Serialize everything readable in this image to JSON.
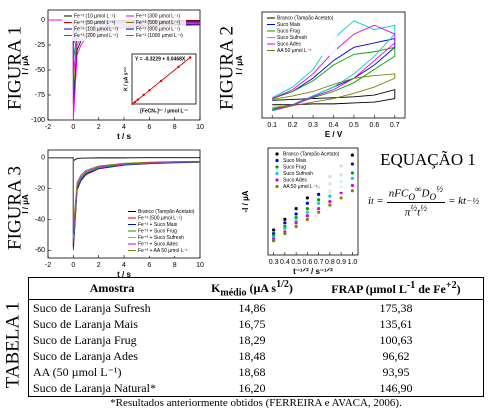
{
  "figure_labels": [
    "FIGURA 1",
    "FIGURA 2",
    "FIGURA 3",
    "TABELA 1"
  ],
  "chart_data": [
    {
      "type": "line",
      "xlabel": "t / s",
      "ylabel": "I / µA",
      "x": [
        -2,
        -1,
        0,
        0,
        0.3,
        0.6,
        1,
        2,
        4,
        6,
        8,
        10
      ],
      "xlim": [
        -2,
        10
      ],
      "xticks": [
        -2,
        0,
        2,
        4,
        6,
        8,
        10
      ],
      "ylim": [
        -100,
        10
      ],
      "yticks": [
        0,
        -25,
        -50,
        -75,
        -100
      ],
      "legend": "upper center",
      "legend_columns": 2,
      "series": [
        {
          "name": "Fe⁺³ (10 µmol L⁻¹)",
          "color": "#000000",
          "values": [
            0,
            0,
            0,
            -8,
            -2.8,
            -2,
            -1.4,
            -1,
            -0.6,
            -0.5,
            -0.4,
            -0.4
          ]
        },
        {
          "name": "Fe⁺³ (50 µmol L⁻¹)",
          "color": "#e00000",
          "values": [
            0,
            0,
            0,
            -15,
            -5.3,
            -3.8,
            -2.7,
            -1.8,
            -1.2,
            -1,
            -0.8,
            -0.8
          ]
        },
        {
          "name": "Fe⁺³ (100 µmol L⁻¹)",
          "color": "#0000e0",
          "values": [
            0,
            0,
            0,
            -25,
            -8.8,
            -6.3,
            -4.5,
            -3,
            -2,
            -1.6,
            -1.4,
            -1.3
          ]
        },
        {
          "name": "Fe⁺³ (200 µmol L⁻¹)",
          "color": "#008080",
          "values": [
            0,
            0,
            0,
            -40,
            -14,
            -10,
            -7.2,
            -4.8,
            -3.2,
            -2.6,
            -2.2,
            -2
          ]
        },
        {
          "name": "Fe⁺³ (300 µmol L⁻¹)",
          "color": "#e000e0",
          "values": [
            0,
            0,
            0,
            -55,
            -19,
            -14,
            -9.9,
            -6.6,
            -4.4,
            -3.6,
            -3,
            -2.8
          ]
        },
        {
          "name": "Fe⁺³ (500 µmol L⁻¹)",
          "color": "#808000",
          "values": [
            0,
            0,
            0,
            -70,
            -25,
            -18,
            -13,
            -8.4,
            -5.6,
            -4.6,
            -3.9,
            -3.5
          ]
        },
        {
          "name": "Fe⁺³ (800 µmol L⁻¹)",
          "color": "#000080",
          "values": [
            0,
            0,
            0,
            -85,
            -30,
            -21,
            -15,
            -10,
            -6.8,
            -5.5,
            -4.7,
            -4.3
          ]
        },
        {
          "name": "Fe⁺³ (1000 µmol L⁻¹)",
          "color": "#ff00ff",
          "values": [
            0,
            0,
            0,
            -100,
            -35,
            -25,
            -18,
            -12,
            -8,
            -6.5,
            -5.5,
            -5
          ]
        }
      ]
    },
    {
      "type": "line",
      "markers": true,
      "xlabel": "[FeCN₆]³⁻ / µmol L⁻¹",
      "ylabel": "K / µA s¹ᐟ²",
      "annotation": "Y = -0.3229 + 0.0468X",
      "x": [
        10,
        50,
        100,
        200,
        300,
        500,
        800,
        1000
      ],
      "xlim": [
        0,
        1100
      ],
      "ylim": [
        0,
        50
      ],
      "series": [
        {
          "color": "#e00000",
          "values": [
            0.15,
            2.02,
            4.36,
            9.04,
            13.7,
            23.1,
            37.1,
            46.5
          ]
        }
      ]
    },
    {
      "type": "line",
      "xlabel": "E / V",
      "ylabel": "I / µA",
      "x": [
        0.1,
        0.2,
        0.3,
        0.4,
        0.5,
        0.6,
        0.7,
        0.7,
        0.6,
        0.5,
        0.4,
        0.3,
        0.2,
        0.1
      ],
      "xlim": [
        0.05,
        0.75
      ],
      "xticks": [
        0.1,
        0.2,
        0.3,
        0.4,
        0.5,
        0.6,
        0.7
      ],
      "ylim": [
        -2,
        10
      ],
      "legend": "upper left",
      "legend_columns": 1,
      "series": [
        {
          "name": "Branco (Tampão Acetato)",
          "color": "#000000",
          "values": [
            0,
            0.1,
            0.2,
            0.3,
            0.4,
            0.6,
            1.2,
            0.2,
            -0.2,
            -0.3,
            -0.4,
            -0.4,
            -0.5,
            -0.5
          ]
        },
        {
          "name": "Suco Mais",
          "color": "#0000e0",
          "values": [
            0.2,
            1,
            2.5,
            4.5,
            6,
            6.5,
            7,
            6,
            4,
            2.5,
            1.5,
            0.5,
            -0.5,
            -1
          ]
        },
        {
          "name": "Suco Frug",
          "color": "#00a000",
          "values": [
            0.2,
            1,
            2.2,
            4,
            5.2,
            5.5,
            6,
            5,
            3.5,
            2,
            1,
            0.3,
            -0.5,
            -1
          ]
        },
        {
          "name": "Suco Sufresh",
          "color": "#00d0e0",
          "values": [
            0.3,
            1.5,
            3.5,
            7,
            9,
            8,
            8.5,
            7.5,
            5,
            3,
            1.5,
            0.5,
            -0.6,
            -1.2
          ]
        },
        {
          "name": "Suco Ades",
          "color": "#e000e0",
          "values": [
            0.2,
            1.2,
            3,
            5.5,
            7.5,
            8.5,
            7.5,
            6.5,
            4.5,
            2.5,
            1.2,
            0.4,
            -0.6,
            -1.1
          ]
        },
        {
          "name": "AA 50 µmol L⁻¹",
          "color": "#808000",
          "values": [
            0.1,
            0.5,
            1,
            1.8,
            2.5,
            2.8,
            3,
            2.5,
            1.5,
            0.8,
            0.2,
            -0.2,
            -0.6,
            -0.8
          ]
        }
      ]
    },
    {
      "type": "line",
      "xlabel": "t / s",
      "ylabel": "I / µA",
      "x": [
        -2,
        -1,
        0,
        0,
        0.3,
        0.6,
        1,
        2,
        4,
        6,
        8,
        10
      ],
      "xlim": [
        -2,
        10
      ],
      "xticks": [
        -2,
        0,
        2,
        4,
        6,
        8,
        10
      ],
      "ylim": [
        -65,
        5
      ],
      "yticks": [
        0,
        -20,
        -40,
        -60
      ],
      "legend": "lower right",
      "legend_columns": 1,
      "series": [
        {
          "name": "Branco (Tampão Acetato)",
          "color": "#000000",
          "values": [
            0,
            0,
            0,
            -2,
            -0.5,
            -0.3,
            -0.2,
            -0.1,
            -0.1,
            0,
            0,
            0
          ]
        },
        {
          "name": "Fe⁺³ (500 µmol L⁻¹)",
          "color": "#e00000",
          "values": [
            0,
            0,
            0,
            -60,
            -21,
            -15,
            -11,
            -7.2,
            -4.8,
            -3.9,
            -3.3,
            -3
          ]
        },
        {
          "name": "Fe⁺³ + Suco Mais",
          "color": "#0000e0",
          "values": [
            0,
            0,
            0,
            -58,
            -20,
            -14.5,
            -10.4,
            -7,
            -4.6,
            -3.8,
            -3.2,
            -2.9
          ]
        },
        {
          "name": "Fe⁺³ + Suco Frug",
          "color": "#00a000",
          "values": [
            0,
            0,
            0,
            -55,
            -19,
            -13.8,
            -9.9,
            -6.6,
            -4.4,
            -3.6,
            -3,
            -2.8
          ]
        },
        {
          "name": "Fe⁺³ + Suco Sufresh",
          "color": "#00d0e0",
          "values": [
            0,
            0,
            0,
            -52,
            -18,
            -13,
            -9.4,
            -6.2,
            -4.2,
            -3.4,
            -2.9,
            -2.6
          ]
        },
        {
          "name": "Fe⁺³ + Suco Ades",
          "color": "#e000e0",
          "values": [
            0,
            0,
            0,
            -50,
            -17.5,
            -12.5,
            -9,
            -6,
            -4,
            -3.3,
            -2.8,
            -2.5
          ]
        },
        {
          "name": "Fe⁺³ + AA 50 µmol L⁻¹",
          "color": "#808000",
          "values": [
            0,
            0,
            0,
            -45,
            -15.8,
            -11.3,
            -8.1,
            -5.4,
            -3.6,
            -2.9,
            -2.5,
            -2.3
          ]
        }
      ]
    },
    {
      "type": "scatter",
      "xlabel": "t⁻¹ᐟ² / s⁻¹ᐟ²",
      "ylabel": "-I / µA",
      "x": [
        0.3,
        0.4,
        0.5,
        0.6,
        0.7,
        0.8,
        0.9,
        1.0
      ],
      "xlim": [
        0.25,
        1.05
      ],
      "xticks": [
        0.3,
        0.4,
        0.5,
        0.6,
        0.7,
        0.8,
        0.9,
        {
          "value": 1.0,
          "label": "1.0"
        }
      ],
      "ylim": [
        0,
        3
      ],
      "legend": "upper left",
      "legend_columns": 1,
      "series": [
        {
          "name": "Branco (Tampão Acetato)",
          "color": "#000000",
          "values": [
            0.7,
            1.0,
            1.3,
            1.6,
            1.9,
            2.2,
            2.5,
            2.8
          ]
        },
        {
          "name": "Suco Mais",
          "color": "#0000e0",
          "values": [
            0.6,
            0.9,
            1.15,
            1.45,
            1.7,
            2.0,
            2.25,
            2.55
          ]
        },
        {
          "name": "Suco Frug",
          "color": "#00a000",
          "values": [
            0.55,
            0.8,
            1.05,
            1.3,
            1.55,
            1.8,
            2.05,
            2.3
          ]
        },
        {
          "name": "Suco Sufresh",
          "color": "#00d0e0",
          "values": [
            0.5,
            0.75,
            0.95,
            1.2,
            1.45,
            1.65,
            1.9,
            2.15
          ]
        },
        {
          "name": "Suco Ades",
          "color": "#e000e0",
          "values": [
            0.45,
            0.65,
            0.9,
            1.1,
            1.3,
            1.5,
            1.75,
            1.95
          ]
        },
        {
          "name": "AA 50 µmol L⁻¹",
          "color": "#808000",
          "values": [
            0.4,
            0.6,
            0.8,
            1.0,
            1.2,
            1.4,
            1.6,
            1.8
          ]
        }
      ]
    }
  ],
  "equation": {
    "title": "EQUAÇÃO 1",
    "lhs": "i",
    "lhs_sub": "t",
    "num": "nFC",
    "num_sub1": "O",
    "num_sup1": "∞",
    "num2": "D",
    "num_sub2": "O",
    "num_sup2": "½",
    "den": "π",
    "den_sup": "½",
    "den2": "t",
    "den_sup2": "½",
    "rhs": "= kt",
    "rhs_sup": "−½"
  },
  "table": {
    "headers": [
      "Amostra",
      {
        "base": "K",
        "sub": "médio",
        "unit": "(µA s",
        "unit_sup": "1/2",
        "close": ")"
      },
      {
        "base": "FRAP (µmol L",
        "sup1": "-1",
        "mid": "de Fe",
        "sup2": "+2",
        "close": ")"
      }
    ],
    "rows": [
      [
        "Suco de Laranja Sufresh",
        "14,86",
        "175,38"
      ],
      [
        "Suco de Laranja Mais",
        "16,75",
        "135,61"
      ],
      [
        "Suco de Laranja Frug",
        "18,29",
        "100,63"
      ],
      [
        "Suco de Laranja Ades",
        "18,48",
        "96,62"
      ],
      [
        "AA (50 µmol L⁻¹)",
        "18,68",
        "93,95"
      ],
      [
        "Suco de Laranja Natural*",
        "16,20",
        "146,90"
      ]
    ],
    "footnote": "*Resultados anteriormente obtidos (FERREIRA e AVACA, 2006)."
  }
}
